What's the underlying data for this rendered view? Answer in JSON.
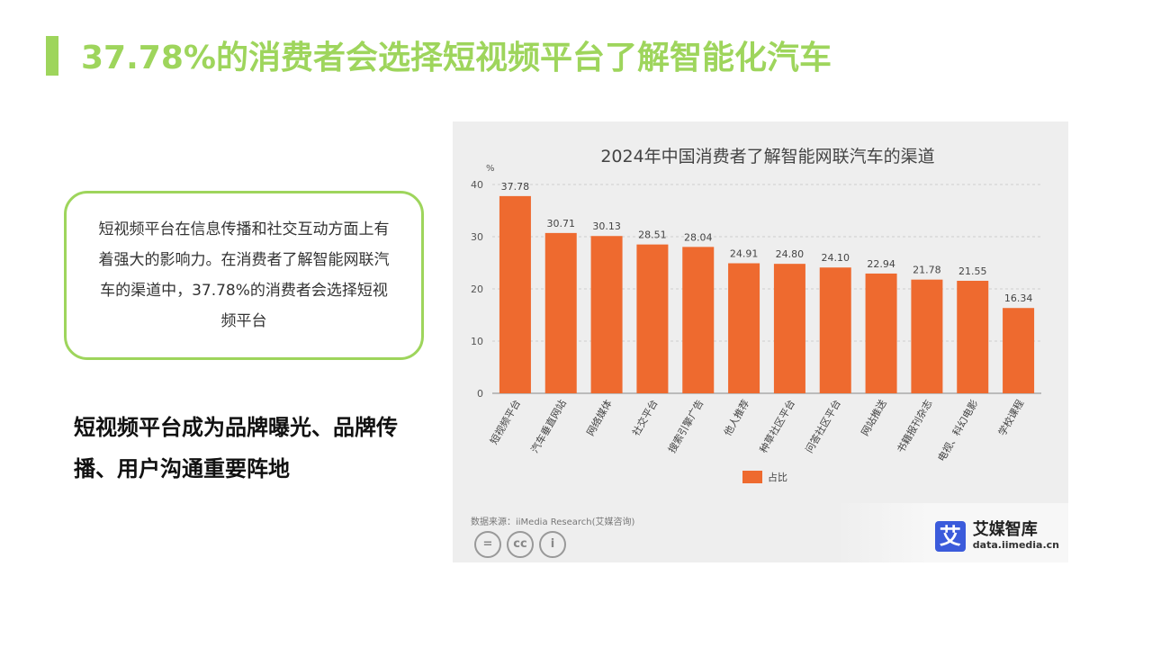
{
  "page": {
    "title": "37.78%的消费者会选择短视频平台了解智能化汽车",
    "callout": "短视频平台在信息传播和社交互动方面上有着强大的影响力。在消费者了解智能网联汽车的渠道中，37.78%的消费者会选择短视频平台",
    "highlight": "短视频平台成为品牌曝光、品牌传播、用户沟通重要阵地",
    "accent_color": "#9ed55c"
  },
  "chart_data": {
    "type": "bar",
    "title": "2024年中国消费者了解智能网联汽车的渠道",
    "yunit": "%",
    "ylim": [
      0,
      40
    ],
    "yticks": [
      0,
      10,
      20,
      30,
      40
    ],
    "grid": true,
    "categories": [
      "短视频平台",
      "汽车垂直网站",
      "网络媒体",
      "社交平台",
      "搜索引擎广告",
      "他人推荐",
      "种草社区平台",
      "问答社区平台",
      "网站推送",
      "书籍报刊杂志",
      "电视、科幻电影",
      "学校课程"
    ],
    "series": [
      {
        "name": "占比",
        "values": [
          37.78,
          30.71,
          30.13,
          28.51,
          28.04,
          24.91,
          24.8,
          24.1,
          22.94,
          21.78,
          21.55,
          16.34
        ],
        "color": "#ee6a2f"
      }
    ],
    "value_labels": [
      "37.78",
      "30.71",
      "30.13",
      "28.51",
      "28.04",
      "24.91",
      "24.80",
      "24.10",
      "22.94",
      "21.78",
      "21.55",
      "16.34"
    ],
    "legend_position": "bottom",
    "source": "数据来源：iiMedia Research(艾媒咨询)"
  },
  "brand": {
    "icon_char": "艾",
    "name": "艾媒智库",
    "url": "data.iimedia.cn",
    "icon_color": "#3b5bdb"
  },
  "license_icons": [
    "=",
    "cc",
    "i"
  ]
}
